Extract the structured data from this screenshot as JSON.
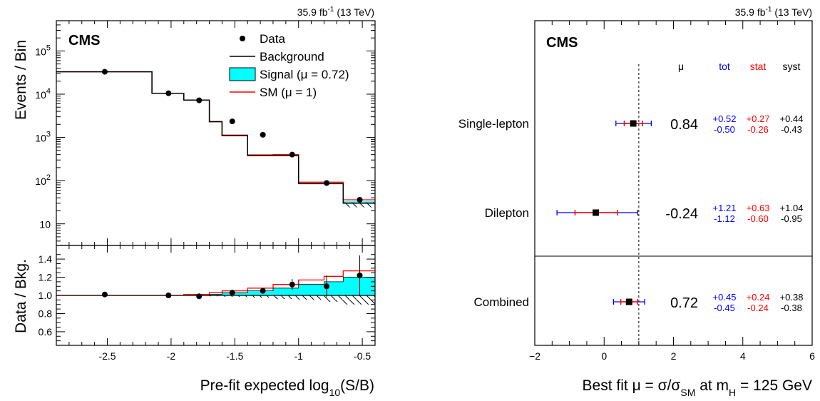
{
  "colors": {
    "signal_fill": "#00ffff",
    "sm_line": "#ff0000",
    "tot": "#0000ff",
    "stat": "#ff0000",
    "syst": "#000000"
  },
  "chart_data": [
    {
      "type": "histogram",
      "lumi_label": "35.9 fb",
      "lumi_exp": "-1",
      "lumi_energy": " (13 TeV)",
      "cms_label": "CMS",
      "xlabel_main": "Pre-fit expected log",
      "xlabel_sub": "10",
      "xlabel_tail": "(S/B)",
      "ylabel_top": "Events / Bin",
      "ylabel_bottom": "Data / Bkg.",
      "xlim": [
        -2.9,
        -0.4
      ],
      "ylim_top_log10": [
        0.5,
        5.7
      ],
      "ylim_ratio": [
        0.45,
        1.55
      ],
      "xticks": [
        "-2.5",
        "-2",
        "-1.5",
        "-1",
        "-0.5"
      ],
      "xtick_values": [
        -2.5,
        -2,
        -1.5,
        -1,
        -0.5
      ],
      "ytick_base": "10",
      "yticks_exp": [
        "",
        "2",
        "3",
        "4",
        "5"
      ],
      "ytick_values_log10": [
        1,
        2,
        3,
        4,
        5
      ],
      "ratio_ticks": [
        "0.6",
        "0.8",
        "1.0",
        "1.2",
        "1.4"
      ],
      "ratio_tick_values": [
        0.6,
        0.8,
        1.0,
        1.2,
        1.4
      ],
      "bin_edges": [
        -2.9,
        -2.15,
        -1.9,
        -1.7,
        -1.6,
        -1.4,
        -1.2,
        -1.0,
        -0.8,
        -0.65,
        -0.4
      ],
      "background": [
        33000,
        10500,
        7300,
        2300,
        1100,
        380,
        380,
        85,
        85,
        30
      ],
      "signal_plus_bkg": [
        33000,
        10500,
        7300,
        2300,
        1110,
        390,
        395,
        88,
        88,
        33
      ],
      "sm_total": [
        33100,
        10550,
        7350,
        2330,
        1130,
        395,
        400,
        92,
        92,
        36
      ],
      "data_points": [
        {
          "x": -2.52,
          "y": 33000,
          "ratio": 1.01,
          "err": 0.005
        },
        {
          "x": -2.02,
          "y": 10500,
          "ratio": 1.0,
          "err": 0.01
        },
        {
          "x": -1.78,
          "y": 7200,
          "ratio": 0.99,
          "err": 0.012
        },
        {
          "x": -1.52,
          "y": 2350,
          "ratio": 1.03,
          "err": 0.02
        },
        {
          "x": -1.28,
          "y": 1150,
          "ratio": 1.05,
          "err": 0.03
        },
        {
          "x": -1.05,
          "y": 400,
          "ratio": 1.12,
          "err": 0.06
        },
        {
          "x": -0.78,
          "y": 88,
          "ratio": 1.1,
          "err": 0.12
        },
        {
          "x": -0.52,
          "y": 36,
          "ratio": 1.22,
          "err": 0.22
        }
      ],
      "ratio_signal": [
        1.0,
        1.0,
        1.0,
        1.01,
        1.03,
        1.05,
        1.08,
        1.12,
        1.15,
        1.2
      ],
      "ratio_sm": [
        1.0,
        1.0,
        1.01,
        1.03,
        1.05,
        1.08,
        1.12,
        1.17,
        1.21,
        1.27
      ],
      "ratio_hatch_low": [
        1.0,
        1.0,
        0.995,
        0.99,
        0.985,
        0.975,
        0.96,
        0.95,
        0.93,
        0.9
      ],
      "legend": [
        {
          "kind": "marker",
          "label": "Data"
        },
        {
          "kind": "line",
          "label": "Background"
        },
        {
          "kind": "box",
          "label": "Signal (μ = 0.72)"
        },
        {
          "kind": "redline",
          "label": "SM (μ = 1)"
        }
      ]
    },
    {
      "type": "scatter",
      "lumi_label": "35.9 fb",
      "lumi_exp": "-1",
      "lumi_energy": " (13 TeV)",
      "cms_label": "CMS",
      "xlabel_main": "Best fit μ = σ/σ",
      "xlabel_sub": "SM",
      "xlabel_mid": " at m",
      "xlabel_sub2": "H",
      "xlabel_tail": " = 125 GeV",
      "xlim": [
        -2,
        6
      ],
      "xticks": [
        "−2",
        "0",
        "2",
        "4",
        "6"
      ],
      "xtick_values": [
        -2,
        0,
        2,
        4,
        6
      ],
      "reference_line": 1,
      "col_headers": {
        "mu": "μ",
        "tot": "tot",
        "stat": "stat",
        "syst": "syst"
      },
      "entries": [
        {
          "name": "Single-lepton",
          "mu": 0.84,
          "mu_label": "0.84",
          "tot_up": 0.52,
          "tot_dn": 0.5,
          "stat_up": 0.27,
          "stat_dn": 0.26,
          "tot_up_label": "+0.52",
          "tot_dn_label": "-0.50",
          "stat_up_label": "+0.27",
          "stat_dn_label": "-0.26",
          "syst_up_label": "+0.44",
          "syst_dn_label": "-0.43"
        },
        {
          "name": "Dilepton",
          "mu": -0.24,
          "mu_label": "-0.24",
          "tot_up": 1.21,
          "tot_dn": 1.12,
          "stat_up": 0.63,
          "stat_dn": 0.6,
          "tot_up_label": "+1.21",
          "tot_dn_label": "-1.12",
          "stat_up_label": "+0.63",
          "stat_dn_label": "-0.60",
          "syst_up_label": "+1.04",
          "syst_dn_label": "-0.95"
        },
        {
          "name": "Combined",
          "mu": 0.72,
          "mu_label": "0.72",
          "tot_up": 0.45,
          "tot_dn": 0.45,
          "stat_up": 0.24,
          "stat_dn": 0.24,
          "tot_up_label": "+0.45",
          "tot_dn_label": "-0.45",
          "stat_up_label": "+0.24",
          "stat_dn_label": "-0.24",
          "syst_up_label": "+0.38",
          "syst_dn_label": "-0.38"
        }
      ]
    }
  ]
}
